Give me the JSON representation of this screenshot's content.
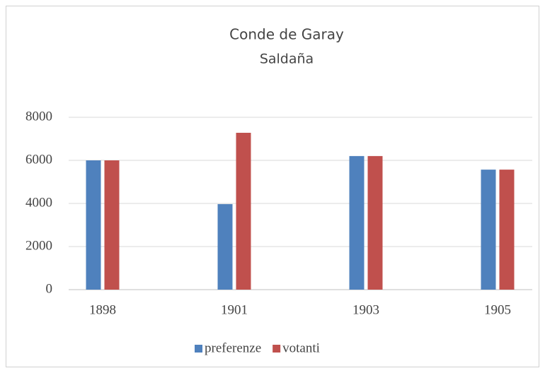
{
  "chart_data": {
    "type": "bar",
    "title": "Conde de Garay",
    "subtitle": "Saldaña",
    "categories": [
      "1898",
      "1901",
      "1903",
      "1905"
    ],
    "series": [
      {
        "name": "preferenze",
        "color": "#4f81bd",
        "values": [
          6000,
          3970,
          6200,
          5570
        ]
      },
      {
        "name": "votanti",
        "color": "#c0504d",
        "values": [
          6000,
          7280,
          6200,
          5570
        ]
      }
    ],
    "ylim": [
      0,
      8000
    ],
    "yticks": [
      0,
      2000,
      4000,
      6000,
      8000
    ],
    "grid": true,
    "legend": "bottom"
  }
}
